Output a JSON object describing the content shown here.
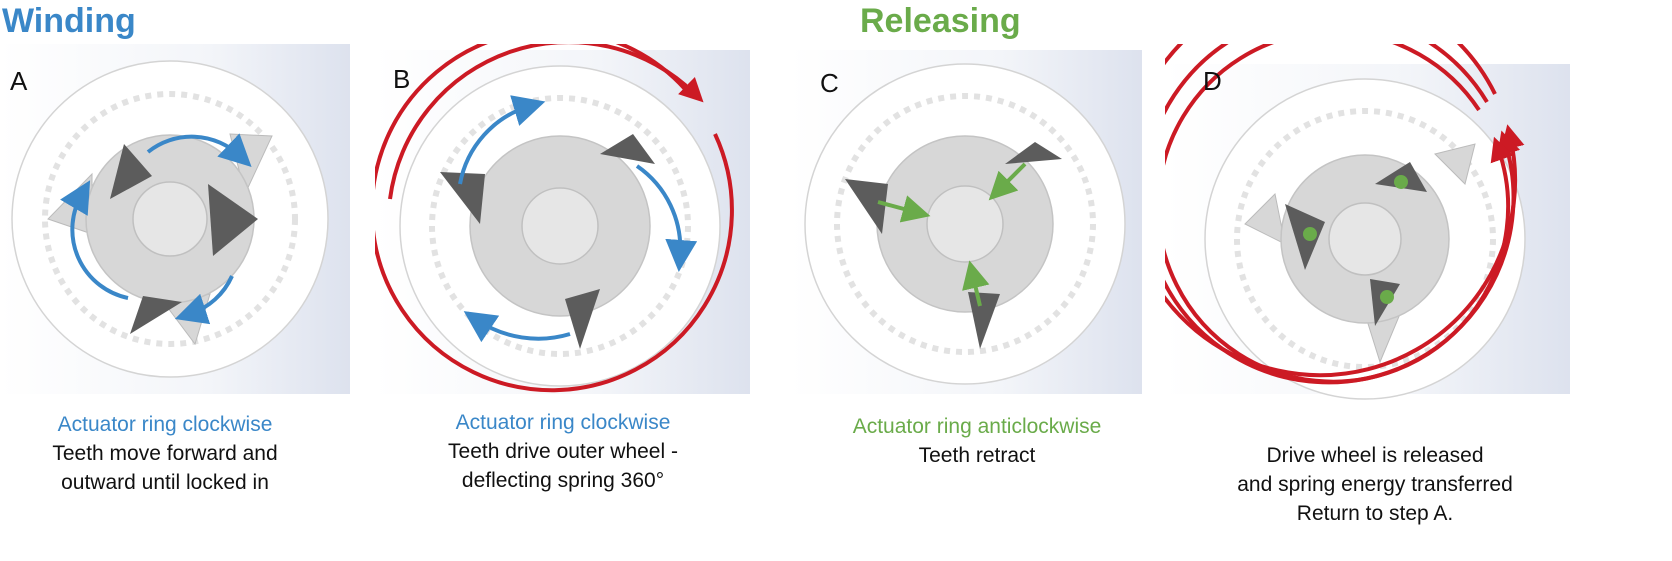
{
  "headings": {
    "winding": "Winding",
    "releasing": "Releasing"
  },
  "colors": {
    "winding": "#3a87c8",
    "releasing": "#6aab4a",
    "spring": "#cc1a24",
    "tooth": "#5c5c5c",
    "hub": "#d7d7d7",
    "ring": "#f7f7f7"
  },
  "panels": [
    {
      "letter": "A",
      "caption_accent": "Actuator ring clockwise",
      "caption_lines": [
        "Teeth move forward and",
        "outward until locked in"
      ]
    },
    {
      "letter": "B",
      "caption_accent": "Actuator ring clockwise",
      "caption_lines": [
        "Teeth drive outer wheel -",
        "deflecting spring 360°"
      ]
    },
    {
      "letter": "C",
      "caption_accent": "Actuator ring anticlockwise",
      "caption_lines": [
        "Teeth retract"
      ]
    },
    {
      "letter": "D",
      "caption_accent": "",
      "caption_lines": [
        "Drive wheel is released",
        "and spring energy transferred",
        "Return to step A."
      ]
    }
  ]
}
